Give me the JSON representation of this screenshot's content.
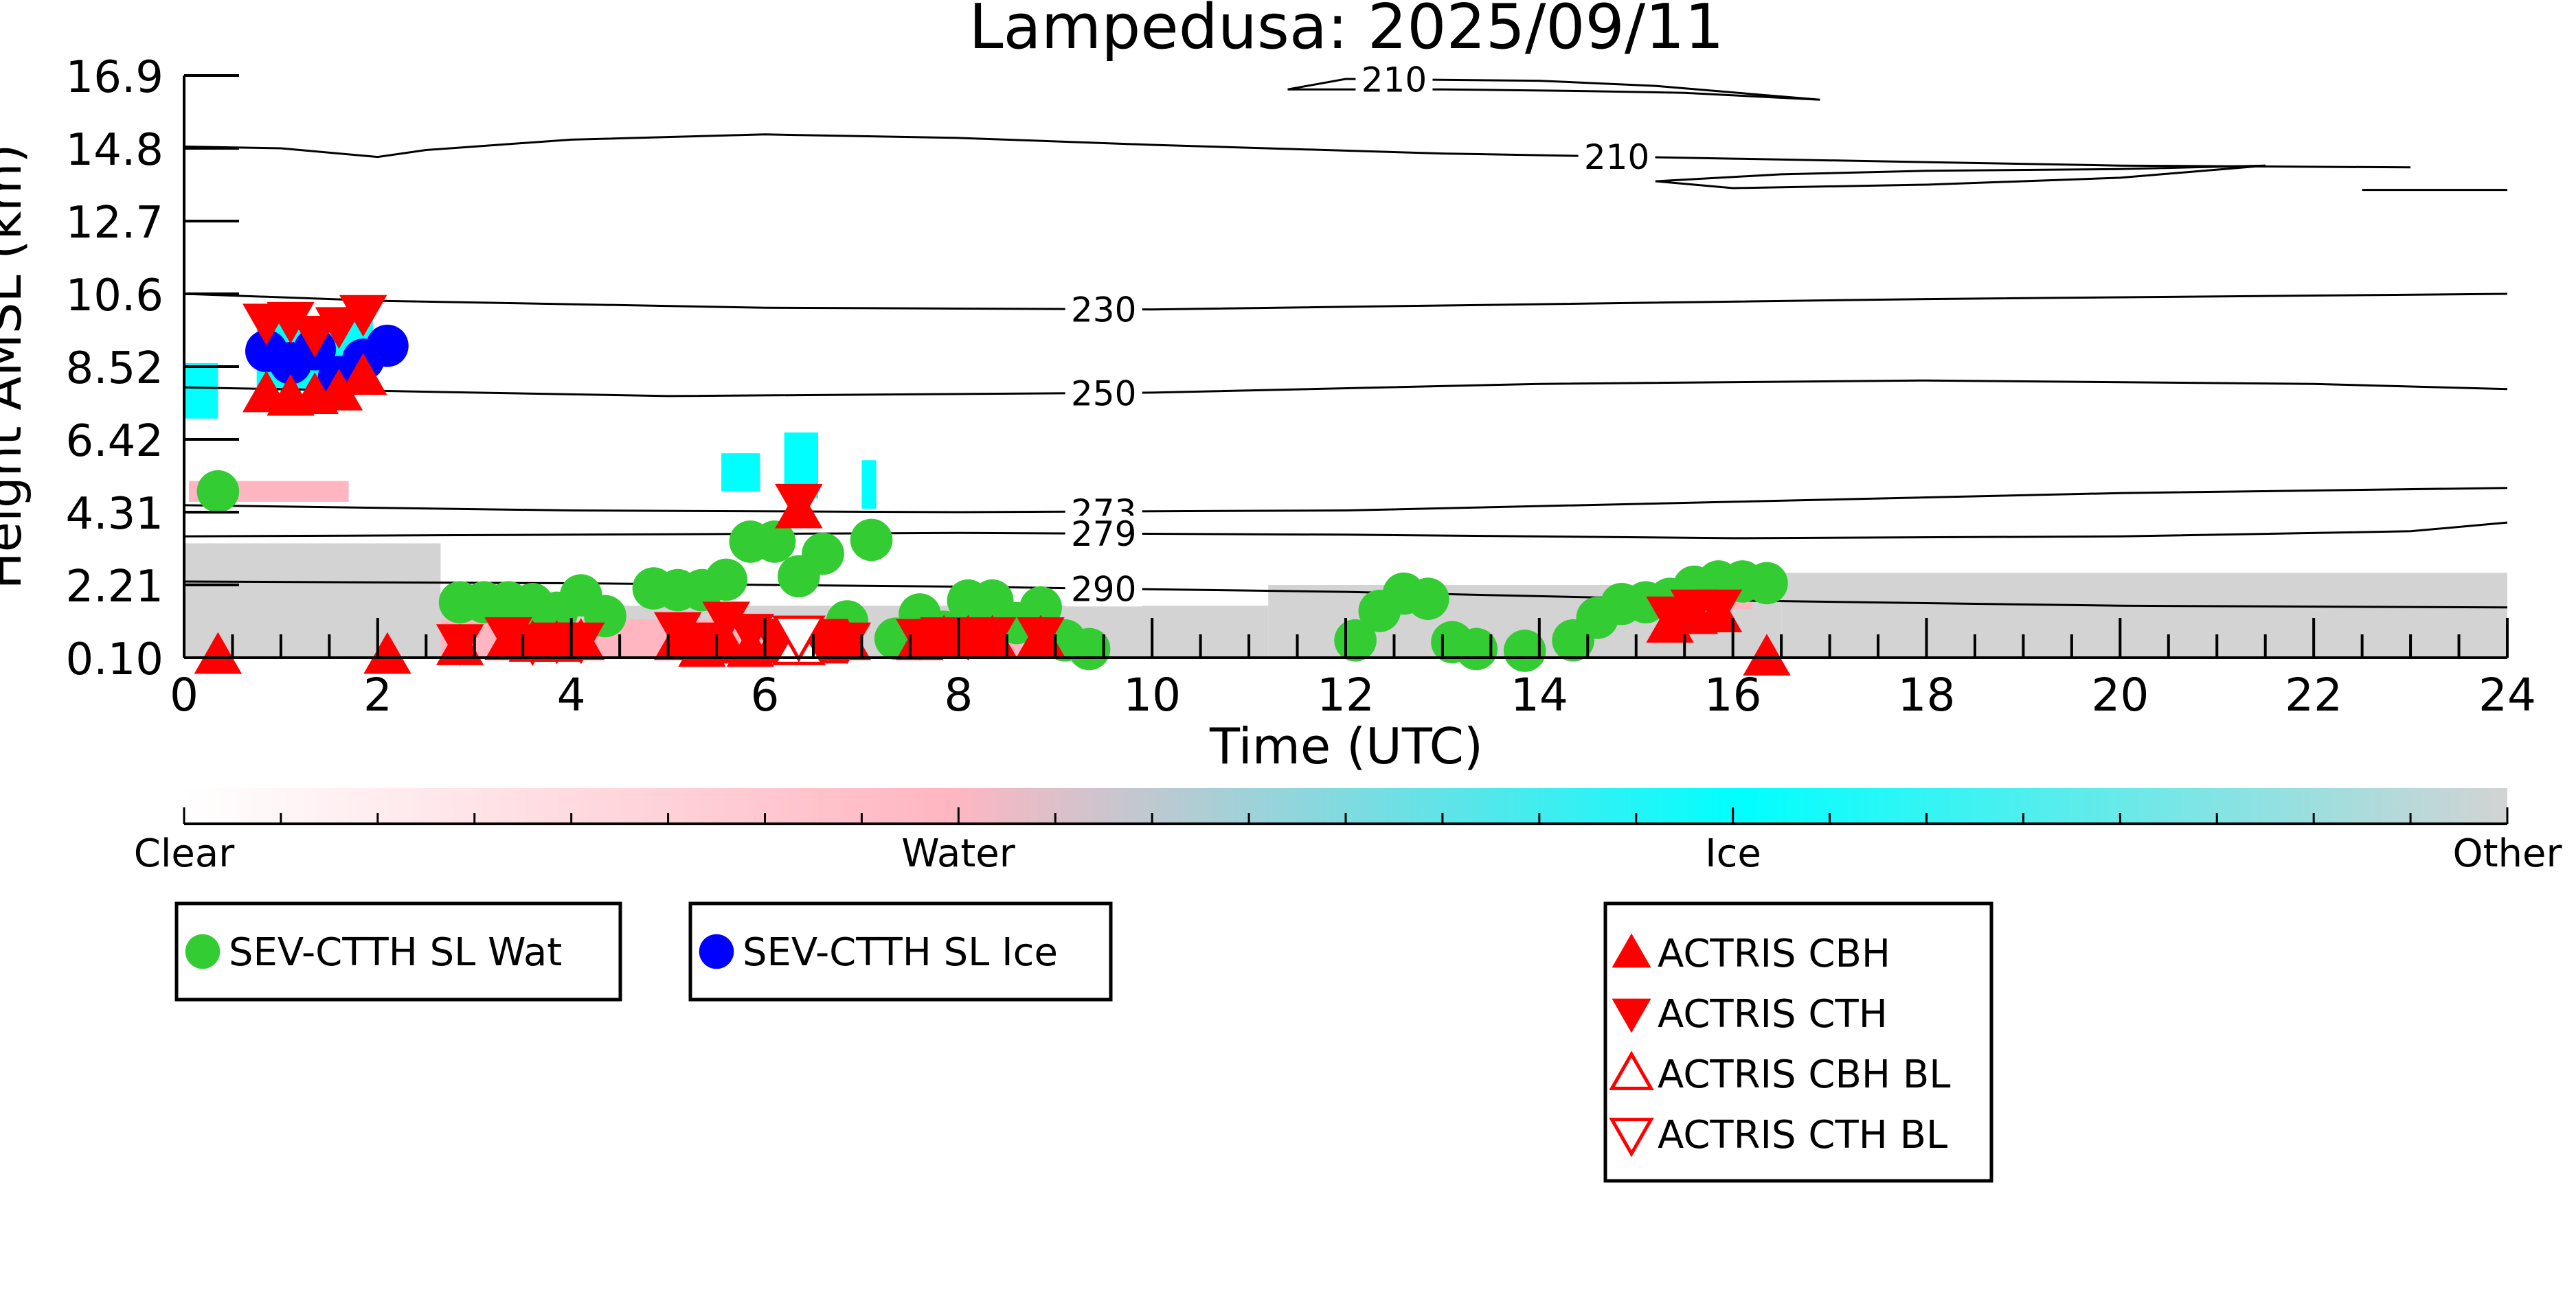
{
  "chart_data": {
    "type": "scatter",
    "title": "Lampedusa: 2025/09/11",
    "xlabel": "Time (UTC)",
    "ylabel": "Height AMSL (km)",
    "xlim": [
      0,
      24
    ],
    "ylim": [
      0.1,
      16.9
    ],
    "x_ticks": [
      "0",
      "2",
      "4",
      "6",
      "8",
      "10",
      "12",
      "14",
      "16",
      "18",
      "20",
      "22",
      "24"
    ],
    "y_ticks": [
      "0.10",
      "2.21",
      "4.31",
      "6.42",
      "8.52",
      "10.6",
      "12.7",
      "14.8",
      "16.9"
    ],
    "grid": false,
    "contours": [
      {
        "label": "210",
        "points": [
          [
            11.4,
            16.5
          ],
          [
            12.0,
            16.8
          ],
          [
            14.0,
            16.75
          ],
          [
            15.2,
            16.6
          ],
          [
            16.9,
            16.2
          ],
          [
            15.5,
            16.4
          ],
          [
            14.5,
            16.45
          ],
          [
            13.0,
            16.5
          ],
          [
            11.4,
            16.5
          ]
        ]
      },
      {
        "label": "210",
        "points": [
          [
            0,
            14.85
          ],
          [
            1.0,
            14.8
          ],
          [
            2.0,
            14.55
          ],
          [
            2.5,
            14.75
          ],
          [
            4.0,
            15.05
          ],
          [
            6.0,
            15.2
          ],
          [
            8.0,
            15.1
          ],
          [
            10.0,
            14.9
          ],
          [
            13.0,
            14.65
          ],
          [
            16.0,
            14.5
          ],
          [
            20.0,
            14.3
          ],
          [
            23.0,
            14.25
          ]
        ]
      },
      {
        "label": "",
        "points": [
          [
            15.2,
            13.85
          ],
          [
            16.5,
            14.05
          ],
          [
            18.0,
            14.15
          ],
          [
            20.0,
            14.2
          ],
          [
            21.5,
            14.3
          ],
          [
            20.0,
            13.95
          ],
          [
            18.0,
            13.75
          ],
          [
            16.0,
            13.65
          ],
          [
            15.2,
            13.85
          ]
        ]
      },
      {
        "label": "",
        "points": [
          [
            22.5,
            13.6
          ],
          [
            23.5,
            13.6
          ],
          [
            24,
            13.6
          ]
        ]
      },
      {
        "label": "230",
        "points": [
          [
            0,
            10.6
          ],
          [
            2.0,
            10.4
          ],
          [
            6.0,
            10.2
          ],
          [
            10.0,
            10.15
          ],
          [
            14.0,
            10.3
          ],
          [
            18.0,
            10.45
          ],
          [
            22.0,
            10.55
          ],
          [
            24,
            10.6
          ]
        ]
      },
      {
        "label": "250",
        "points": [
          [
            0,
            7.9
          ],
          [
            2.0,
            7.8
          ],
          [
            5.0,
            7.65
          ],
          [
            10.0,
            7.75
          ],
          [
            14.0,
            8.0
          ],
          [
            18.0,
            8.1
          ],
          [
            22.0,
            8.0
          ],
          [
            24,
            7.85
          ]
        ]
      },
      {
        "label": "273",
        "points": [
          [
            0,
            4.5
          ],
          [
            4.0,
            4.35
          ],
          [
            8.0,
            4.3
          ],
          [
            12.0,
            4.35
          ],
          [
            16.0,
            4.6
          ],
          [
            20.0,
            4.85
          ],
          [
            24,
            5.0
          ]
        ]
      },
      {
        "label": "279",
        "points": [
          [
            0,
            3.6
          ],
          [
            4.0,
            3.65
          ],
          [
            8.0,
            3.7
          ],
          [
            12.0,
            3.65
          ],
          [
            16.0,
            3.55
          ],
          [
            20.0,
            3.6
          ],
          [
            23.0,
            3.75
          ],
          [
            24,
            4.0
          ]
        ]
      },
      {
        "label": "290",
        "points": [
          [
            0,
            2.3
          ],
          [
            4.0,
            2.25
          ],
          [
            8.0,
            2.15
          ],
          [
            12.0,
            2.0
          ],
          [
            16.0,
            1.75
          ],
          [
            20.0,
            1.6
          ],
          [
            24,
            1.55
          ]
        ]
      }
    ],
    "cloudnet_mask": {
      "classes": [
        "Clear",
        "Water",
        "Ice",
        "Other"
      ],
      "colors": {
        "Clear": "#ffffff",
        "Water": "#ffb6c1",
        "Ice": "#00ffff",
        "Other": "#d3d3d3"
      },
      "regions": [
        {
          "class": "Other",
          "x": [
            0,
            2.65
          ],
          "y": [
            0.1,
            3.4
          ]
        },
        {
          "class": "Other",
          "x": [
            2.65,
            11.2
          ],
          "y": [
            0.1,
            1.6
          ]
        },
        {
          "class": "Other",
          "x": [
            11.2,
            16.5
          ],
          "y": [
            0.1,
            2.2
          ]
        },
        {
          "class": "Other",
          "x": [
            16.5,
            24
          ],
          "y": [
            0.1,
            2.55
          ]
        },
        {
          "class": "Water",
          "x": [
            0.05,
            1.7
          ],
          "y": [
            4.6,
            5.2
          ]
        },
        {
          "class": "Water",
          "x": [
            2.65,
            6.7
          ],
          "y": [
            0.1,
            1.2
          ]
        },
        {
          "class": "Water",
          "x": [
            7.4,
            8.9
          ],
          "y": [
            0.1,
            1.0
          ]
        },
        {
          "class": "Water",
          "x": [
            15.2,
            16.2
          ],
          "y": [
            1.5,
            2.0
          ]
        },
        {
          "class": "Ice",
          "x": [
            0,
            0.35
          ],
          "y": [
            7.0,
            8.6
          ]
        },
        {
          "class": "Ice",
          "x": [
            0.75,
            1.95
          ],
          "y": [
            7.8,
            9.9
          ]
        },
        {
          "class": "Ice",
          "x": [
            5.55,
            5.95
          ],
          "y": [
            4.9,
            6.0
          ]
        },
        {
          "class": "Ice",
          "x": [
            6.2,
            6.55
          ],
          "y": [
            4.7,
            6.6
          ]
        },
        {
          "class": "Ice",
          "x": [
            7.0,
            7.15
          ],
          "y": [
            4.4,
            5.8
          ]
        }
      ]
    },
    "colorbar": {
      "labels": [
        "Clear",
        "Water",
        "Ice",
        "Other"
      ]
    },
    "series": [
      {
        "name": "SEV-CTTH SL Wat",
        "marker": "circle",
        "color": "#33cc33",
        "points": [
          [
            0.35,
            4.9
          ],
          [
            2.85,
            1.7
          ],
          [
            3.1,
            1.7
          ],
          [
            3.35,
            1.7
          ],
          [
            3.6,
            1.65
          ],
          [
            3.85,
            1.4
          ],
          [
            4.1,
            1.9
          ],
          [
            4.35,
            1.3
          ],
          [
            4.85,
            2.1
          ],
          [
            5.1,
            2.05
          ],
          [
            5.35,
            2.05
          ],
          [
            5.6,
            2.35
          ],
          [
            5.85,
            3.45
          ],
          [
            6.1,
            3.45
          ],
          [
            6.35,
            2.45
          ],
          [
            6.6,
            3.1
          ],
          [
            6.85,
            1.15
          ],
          [
            7.1,
            3.5
          ],
          [
            7.35,
            0.65
          ],
          [
            7.6,
            1.35
          ],
          [
            7.85,
            0.85
          ],
          [
            8.1,
            1.75
          ],
          [
            8.35,
            1.75
          ],
          [
            8.6,
            1.1
          ],
          [
            8.85,
            1.55
          ],
          [
            9.1,
            0.6
          ],
          [
            9.35,
            0.35
          ],
          [
            12.1,
            0.6
          ],
          [
            12.35,
            1.45
          ],
          [
            12.6,
            1.95
          ],
          [
            12.85,
            1.8
          ],
          [
            13.1,
            0.55
          ],
          [
            13.35,
            0.35
          ],
          [
            13.85,
            0.3
          ],
          [
            14.35,
            0.6
          ],
          [
            14.6,
            1.25
          ],
          [
            14.85,
            1.65
          ],
          [
            15.1,
            1.7
          ],
          [
            15.35,
            1.8
          ],
          [
            15.6,
            2.15
          ],
          [
            15.85,
            2.3
          ],
          [
            16.1,
            2.3
          ],
          [
            16.35,
            2.25
          ]
        ]
      },
      {
        "name": "SEV-CTTH SL Ice",
        "marker": "circle",
        "color": "#0000ff",
        "points": [
          [
            0.85,
            8.95
          ],
          [
            1.1,
            8.6
          ],
          [
            1.35,
            9.0
          ],
          [
            1.6,
            8.2
          ],
          [
            1.85,
            8.7
          ],
          [
            2.1,
            9.1
          ]
        ]
      },
      {
        "name": "ACTRIS CBH",
        "marker": "triangle-up",
        "color": "#ff0000",
        "points": [
          [
            0.35,
            0.15
          ],
          [
            0.85,
            7.7
          ],
          [
            1.1,
            7.6
          ],
          [
            1.35,
            7.65
          ],
          [
            1.6,
            7.75
          ],
          [
            1.85,
            8.2
          ],
          [
            2.1,
            0.15
          ],
          [
            2.85,
            0.4
          ],
          [
            3.35,
            0.55
          ],
          [
            3.6,
            0.5
          ],
          [
            3.85,
            0.5
          ],
          [
            4.1,
            0.55
          ],
          [
            5.1,
            0.55
          ],
          [
            5.35,
            0.35
          ],
          [
            5.6,
            0.45
          ],
          [
            5.85,
            0.35
          ],
          [
            6.1,
            0.45
          ],
          [
            6.35,
            4.35
          ],
          [
            6.6,
            0.45
          ],
          [
            6.85,
            0.55
          ],
          [
            7.6,
            0.55
          ],
          [
            7.85,
            0.65
          ],
          [
            8.1,
            0.65
          ],
          [
            8.35,
            0.65
          ],
          [
            8.85,
            0.65
          ],
          [
            15.35,
            1.05
          ],
          [
            15.6,
            1.3
          ],
          [
            15.85,
            1.35
          ],
          [
            16.35,
            0.1
          ]
        ]
      },
      {
        "name": "ACTRIS CTH",
        "marker": "triangle-down",
        "color": "#ff0000",
        "points": [
          [
            0.85,
            9.8
          ],
          [
            1.1,
            9.85
          ],
          [
            1.35,
            9.45
          ],
          [
            1.6,
            9.7
          ],
          [
            1.85,
            10.05
          ],
          [
            2.85,
            0.55
          ],
          [
            3.35,
            0.75
          ],
          [
            3.6,
            0.55
          ],
          [
            3.85,
            0.6
          ],
          [
            4.1,
            0.6
          ],
          [
            5.1,
            0.9
          ],
          [
            5.35,
            0.6
          ],
          [
            5.6,
            1.2
          ],
          [
            5.85,
            0.85
          ],
          [
            6.1,
            0.7
          ],
          [
            6.35,
            4.6
          ],
          [
            6.6,
            0.7
          ],
          [
            6.85,
            0.6
          ],
          [
            7.6,
            0.7
          ],
          [
            7.85,
            0.75
          ],
          [
            8.1,
            0.7
          ],
          [
            8.35,
            0.75
          ],
          [
            8.85,
            0.75
          ],
          [
            15.35,
            1.35
          ],
          [
            15.6,
            1.55
          ],
          [
            15.85,
            1.55
          ]
        ]
      },
      {
        "name": "ACTRIS CBH BL",
        "marker": "triangle-up-open",
        "color": "#ff0000",
        "points": [
          [
            6.35,
            0.45
          ]
        ]
      },
      {
        "name": "ACTRIS CTH BL",
        "marker": "triangle-down-open",
        "color": "#ff0000",
        "points": [
          [
            6.35,
            0.75
          ]
        ]
      }
    ],
    "legend": [
      {
        "group": "sev-wat",
        "entries": [
          "SEV-CTTH SL Wat"
        ]
      },
      {
        "group": "sev-ice",
        "entries": [
          "SEV-CTTH SL Ice"
        ]
      },
      {
        "group": "actris",
        "entries": [
          "ACTRIS CBH",
          "ACTRIS CTH",
          "ACTRIS CBH BL",
          "ACTRIS CTH BL"
        ]
      }
    ]
  }
}
